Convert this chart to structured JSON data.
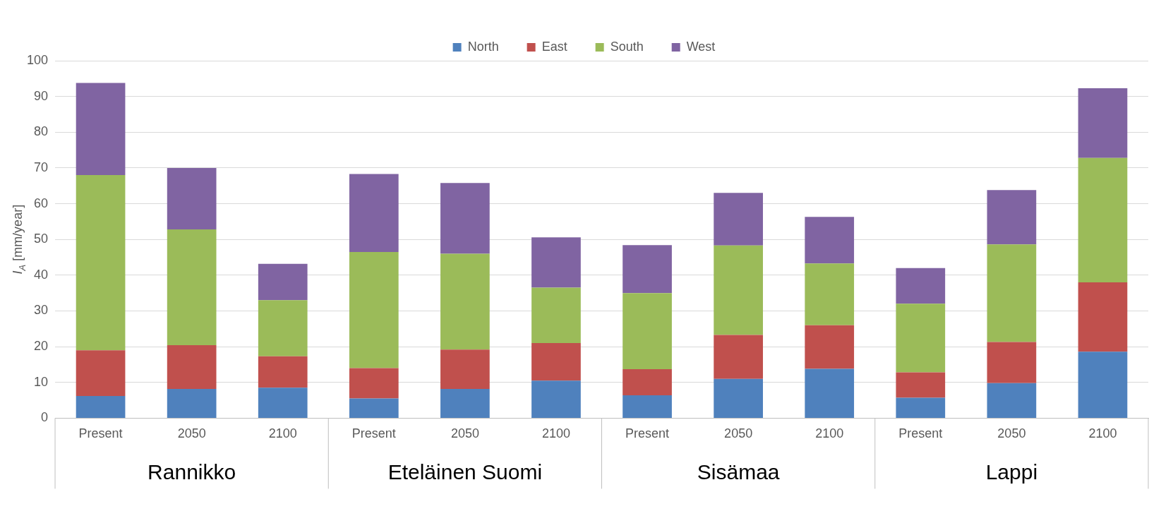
{
  "chart_data": {
    "type": "bar",
    "stacked": true,
    "ylabel": "I$_{A}$ [mm/year]",
    "categories": [
      "Present",
      "2050",
      "2100",
      "Present",
      "2050",
      "2100",
      "Present",
      "2050",
      "2100",
      "Present",
      "2050",
      "2100"
    ],
    "series": [
      {
        "name": "North",
        "color": "#4f81bd",
        "values": [
          6.2,
          8.2,
          8.5,
          5.5,
          8.2,
          10.5,
          6.4,
          11,
          13.8,
          5.7,
          9.8,
          18.6
        ]
      },
      {
        "name": "East",
        "color": "#c0504d",
        "values": [
          12.8,
          12.2,
          8.8,
          8.5,
          11,
          10.5,
          7.3,
          12.3,
          12.2,
          7.1,
          11.5,
          19.4
        ]
      },
      {
        "name": "South",
        "color": "#9bbb59",
        "values": [
          49,
          32.4,
          15.7,
          32.5,
          26.8,
          15.5,
          21.3,
          25,
          17.3,
          19.2,
          27.3,
          34.8
        ]
      },
      {
        "name": "West",
        "color": "#8064a2",
        "values": [
          25.8,
          17.2,
          10.2,
          21.8,
          19.8,
          14.1,
          13.4,
          14.7,
          13,
          10,
          15.2,
          19.5
        ]
      }
    ],
    "annotations": [
      "Rannikko",
      "Eteläinen Suomi",
      "Sisämaa",
      "Lappi"
    ],
    "ylim": [
      0,
      100
    ],
    "yticks": [
      0,
      10,
      20,
      30,
      40,
      50,
      60,
      70,
      80,
      90,
      100
    ],
    "grid": "y",
    "legend": "top"
  }
}
